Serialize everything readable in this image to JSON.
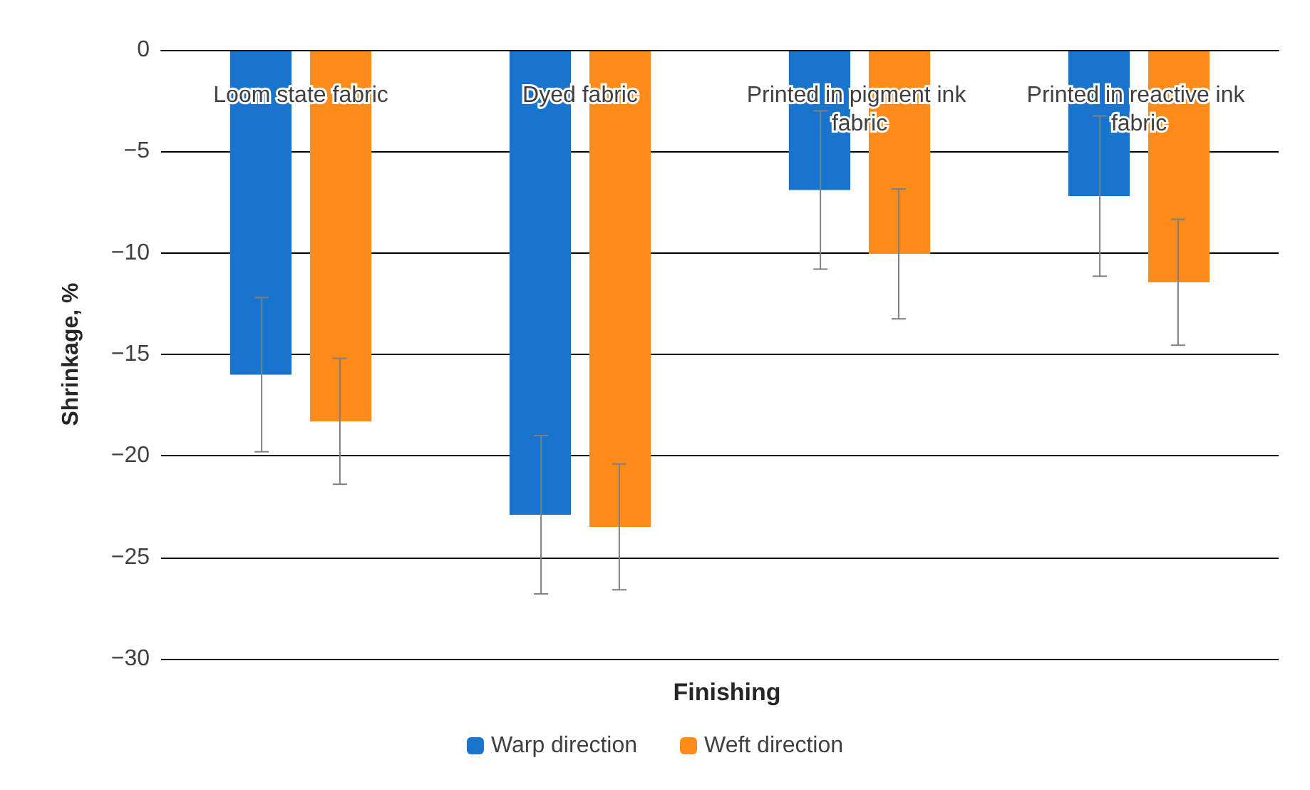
{
  "chart_data": {
    "type": "bar",
    "xlabel": "Finishing",
    "ylabel": "Shrinkage, %",
    "categories": [
      "Loom state fabric",
      "Dyed fabric",
      "Printed in pigment ink fabric",
      "Printed in reactive ink fabric"
    ],
    "series": [
      {
        "name": "Warp direction",
        "color": "#1874cd",
        "values": [
          -16.0,
          -22.9,
          -6.9,
          -7.2
        ],
        "errors": [
          3.8,
          3.9,
          3.9,
          3.95
        ]
      },
      {
        "name": "Weft direction",
        "color": "#ff8c1a",
        "values": [
          -18.3,
          -23.5,
          -10.05,
          -11.45
        ],
        "errors": [
          3.1,
          3.1,
          3.2,
          3.1
        ]
      }
    ],
    "ylim": [
      -30,
      0
    ],
    "yticks": [
      -30,
      -25,
      -20,
      -15,
      -10,
      -5,
      0
    ],
    "grid": "y",
    "legend": "bottom"
  }
}
